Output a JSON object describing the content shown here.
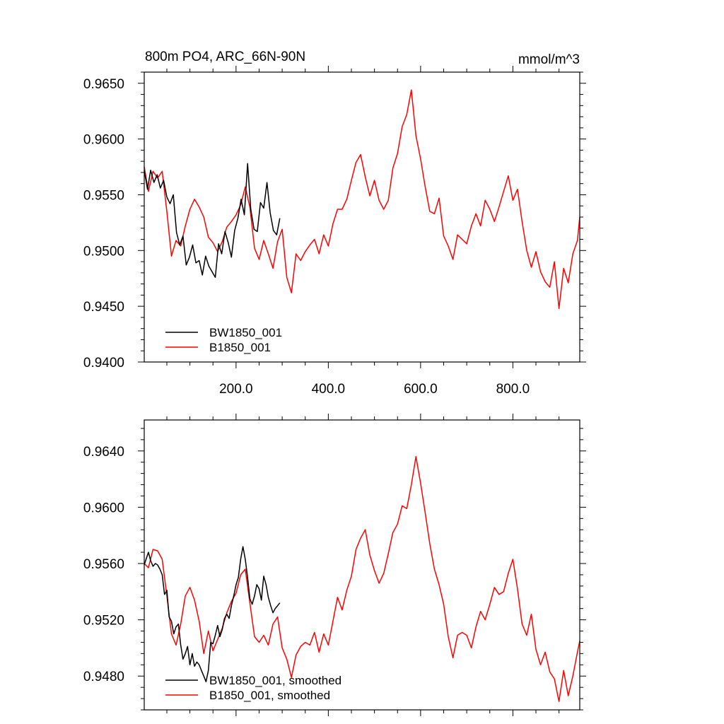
{
  "chart_data": [
    {
      "type": "line",
      "title": "800m PO4, ARC_66N-90N",
      "units": "mmol/m^3",
      "xlim": [
        1,
        945
      ],
      "ylim": [
        0.94,
        0.966
      ],
      "xticks": [
        200,
        400,
        600,
        800
      ],
      "xtick_labels": [
        "200.0",
        "400.0",
        "600.0",
        "800.0"
      ],
      "yticks": [
        0.94,
        0.945,
        0.95,
        0.955,
        0.96,
        0.965
      ],
      "ytick_labels": [
        "0.9400",
        "0.9450",
        "0.9500",
        "0.9550",
        "0.9600",
        "0.9650"
      ],
      "legend_position": "bottom-left",
      "grid": false,
      "series": [
        {
          "name": "BW1850_001",
          "color": "#000000",
          "x": [
            1,
            8,
            15,
            22,
            29,
            36,
            43,
            50,
            57,
            64,
            71,
            78,
            85,
            92,
            99,
            106,
            113,
            120,
            127,
            134,
            141,
            148,
            155,
            162,
            169,
            176,
            183,
            190,
            197,
            204,
            211,
            218,
            225,
            232,
            239,
            246,
            253,
            260,
            267,
            274,
            281,
            288,
            295
          ],
          "y": [
            0.9572,
            0.9555,
            0.9572,
            0.9561,
            0.9568,
            0.9556,
            0.9563,
            0.9548,
            0.9542,
            0.955,
            0.9516,
            0.9505,
            0.9513,
            0.9487,
            0.9494,
            0.9505,
            0.9489,
            0.9491,
            0.9478,
            0.9495,
            0.9486,
            0.9481,
            0.9476,
            0.9506,
            0.9497,
            0.9517,
            0.9507,
            0.9494,
            0.9518,
            0.9529,
            0.9546,
            0.9532,
            0.9578,
            0.9537,
            0.9519,
            0.9517,
            0.9543,
            0.9538,
            0.9561,
            0.9534,
            0.9518,
            0.9514,
            0.9529
          ]
        },
        {
          "name": "B1850_001",
          "color": "#ff0000",
          "x": [
            1,
            10,
            20,
            30,
            40,
            50,
            60,
            70,
            80,
            90,
            100,
            110,
            120,
            130,
            140,
            150,
            160,
            170,
            180,
            190,
            200,
            210,
            220,
            230,
            240,
            250,
            260,
            270,
            280,
            290,
            300,
            310,
            320,
            330,
            340,
            350,
            360,
            370,
            380,
            390,
            400,
            410,
            420,
            430,
            440,
            450,
            460,
            470,
            480,
            490,
            500,
            510,
            520,
            530,
            540,
            550,
            560,
            570,
            580,
            590,
            600,
            610,
            620,
            630,
            640,
            650,
            660,
            670,
            680,
            690,
            700,
            710,
            720,
            730,
            740,
            750,
            760,
            770,
            780,
            790,
            800,
            810,
            820,
            830,
            840,
            850,
            860,
            870,
            880,
            890,
            900,
            910,
            920,
            930,
            940,
            945
          ],
          "y": [
            0.9575,
            0.9553,
            0.9571,
            0.9565,
            0.9571,
            0.9535,
            0.9495,
            0.9509,
            0.9504,
            0.9522,
            0.9537,
            0.9546,
            0.9539,
            0.953,
            0.9512,
            0.9507,
            0.9499,
            0.9508,
            0.9521,
            0.9526,
            0.9532,
            0.9541,
            0.9557,
            0.9539,
            0.9502,
            0.9492,
            0.9509,
            0.9497,
            0.9484,
            0.9508,
            0.9519,
            0.9476,
            0.9462,
            0.9497,
            0.9491,
            0.9499,
            0.9505,
            0.951,
            0.9497,
            0.9514,
            0.9504,
            0.9524,
            0.9537,
            0.9537,
            0.9546,
            0.9563,
            0.9579,
            0.9586,
            0.9566,
            0.9549,
            0.9563,
            0.9545,
            0.9537,
            0.9545,
            0.9574,
            0.9587,
            0.9611,
            0.9622,
            0.9644,
            0.9603,
            0.9582,
            0.9557,
            0.9535,
            0.9533,
            0.9547,
            0.9513,
            0.9504,
            0.9492,
            0.9514,
            0.951,
            0.9506,
            0.9522,
            0.9533,
            0.9522,
            0.9545,
            0.9537,
            0.9526,
            0.9539,
            0.9553,
            0.9567,
            0.9545,
            0.9555,
            0.9526,
            0.95,
            0.9485,
            0.9499,
            0.9481,
            0.9472,
            0.9467,
            0.949,
            0.9448,
            0.9484,
            0.9471,
            0.9497,
            0.9509,
            0.953
          ]
        }
      ]
    },
    {
      "type": "line",
      "title": "",
      "xlim": [
        1,
        945
      ],
      "ylim": [
        0.9456,
        0.9662
      ],
      "xticks": [
        200,
        400,
        600,
        800
      ],
      "yticks": [
        0.948,
        0.952,
        0.956,
        0.96,
        0.964
      ],
      "ytick_labels": [
        "0.9480",
        "0.9520",
        "0.9560",
        "0.9600",
        "0.9640"
      ],
      "legend_position": "bottom-left",
      "grid": false,
      "series": [
        {
          "name": "BW1850_001, smoothed",
          "color": "#000000",
          "x": [
            1,
            5,
            10,
            15,
            20,
            25,
            30,
            35,
            40,
            45,
            50,
            55,
            60,
            65,
            70,
            75,
            80,
            85,
            90,
            95,
            100,
            105,
            110,
            115,
            120,
            125,
            130,
            135,
            140,
            145,
            150,
            155,
            160,
            165,
            170,
            175,
            180,
            185,
            190,
            195,
            200,
            205,
            210,
            215,
            220,
            225,
            230,
            235,
            240,
            245,
            250,
            255,
            260,
            265,
            270,
            275,
            280,
            285,
            290,
            295
          ],
          "y": [
            0.9559,
            0.9563,
            0.9568,
            0.9562,
            0.9558,
            0.956,
            0.9559,
            0.9556,
            0.9552,
            0.9538,
            0.9541,
            0.9522,
            0.9519,
            0.951,
            0.9515,
            0.9517,
            0.9502,
            0.9492,
            0.9496,
            0.9501,
            0.9488,
            0.9496,
            0.9487,
            0.949,
            0.9488,
            0.9484,
            0.948,
            0.9476,
            0.9484,
            0.9504,
            0.9503,
            0.9509,
            0.9516,
            0.9508,
            0.9513,
            0.9521,
            0.9524,
            0.9521,
            0.953,
            0.9537,
            0.9545,
            0.955,
            0.9563,
            0.9572,
            0.9563,
            0.955,
            0.9535,
            0.9531,
            0.9537,
            0.9545,
            0.9542,
            0.9534,
            0.9551,
            0.9545,
            0.9536,
            0.953,
            0.9525,
            0.9528,
            0.953,
            0.9532
          ]
        },
        {
          "name": "B1850_001, smoothed",
          "color": "#ff0000",
          "x": [
            1,
            10,
            20,
            30,
            40,
            50,
            60,
            70,
            80,
            90,
            100,
            110,
            120,
            130,
            140,
            150,
            160,
            170,
            180,
            190,
            200,
            210,
            220,
            230,
            240,
            250,
            260,
            270,
            280,
            290,
            300,
            310,
            320,
            330,
            340,
            350,
            360,
            370,
            380,
            390,
            400,
            410,
            420,
            430,
            440,
            450,
            460,
            470,
            480,
            490,
            500,
            510,
            520,
            530,
            540,
            550,
            560,
            570,
            580,
            590,
            600,
            610,
            620,
            630,
            640,
            650,
            660,
            670,
            680,
            690,
            700,
            710,
            720,
            730,
            740,
            750,
            760,
            770,
            780,
            790,
            800,
            810,
            820,
            830,
            840,
            850,
            860,
            870,
            880,
            890,
            900,
            910,
            920,
            930,
            940,
            945
          ],
          "y": [
            0.956,
            0.9557,
            0.957,
            0.9569,
            0.9563,
            0.9537,
            0.951,
            0.9502,
            0.9517,
            0.9537,
            0.9543,
            0.9534,
            0.9519,
            0.9496,
            0.9512,
            0.9498,
            0.9506,
            0.9514,
            0.9525,
            0.9533,
            0.9539,
            0.9552,
            0.9556,
            0.9532,
            0.9508,
            0.9504,
            0.9509,
            0.9502,
            0.9517,
            0.9522,
            0.95,
            0.9492,
            0.9479,
            0.9495,
            0.9501,
            0.9504,
            0.9502,
            0.9511,
            0.9497,
            0.951,
            0.9502,
            0.9519,
            0.9536,
            0.9527,
            0.9541,
            0.9551,
            0.957,
            0.9578,
            0.9584,
            0.9566,
            0.9555,
            0.9546,
            0.9553,
            0.9567,
            0.9582,
            0.9588,
            0.9601,
            0.9599,
            0.9616,
            0.9636,
            0.9617,
            0.9596,
            0.9574,
            0.9556,
            0.9545,
            0.9531,
            0.9508,
            0.9493,
            0.9509,
            0.9511,
            0.9509,
            0.95,
            0.9515,
            0.9526,
            0.952,
            0.9531,
            0.9543,
            0.9538,
            0.954,
            0.9553,
            0.9563,
            0.9542,
            0.9517,
            0.9509,
            0.9524,
            0.9499,
            0.9488,
            0.9497,
            0.9483,
            0.9478,
            0.9462,
            0.9484,
            0.9466,
            0.948,
            0.9497,
            0.9505
          ]
        }
      ]
    }
  ]
}
